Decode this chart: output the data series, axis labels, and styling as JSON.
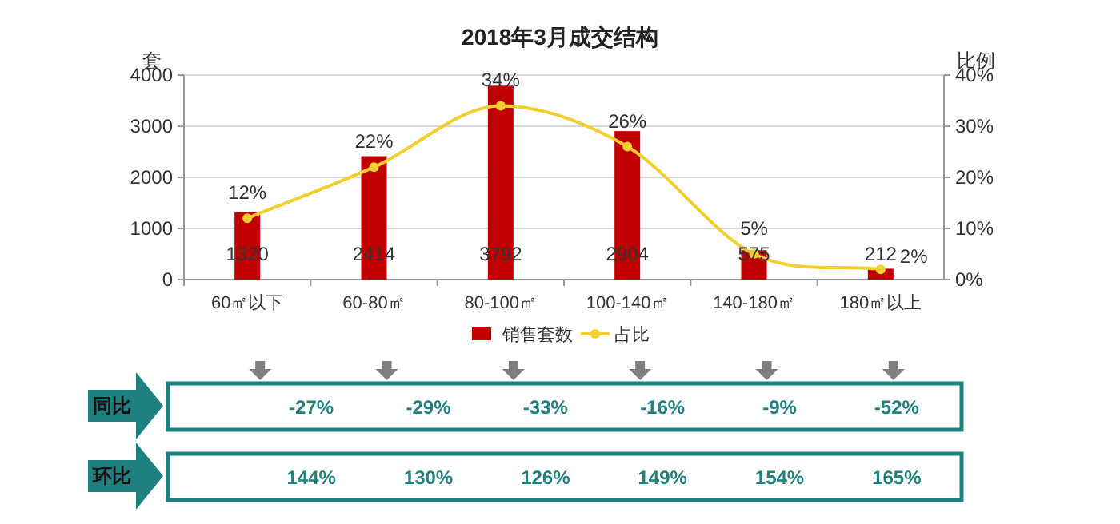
{
  "chart_data": [
    {
      "type": "bar",
      "title": "2018年3月成交结构",
      "ylabel": "套",
      "y2label": "比例",
      "categories": [
        "60㎡以下",
        "60-80㎡",
        "80-100㎡",
        "100-140㎡",
        "140-180㎡",
        "180㎡以上"
      ],
      "series": [
        {
          "name": "销售套数",
          "type": "bar",
          "color": "#c00000",
          "values": [
            1320,
            2414,
            3792,
            2904,
            575,
            212
          ],
          "value_labels": [
            "1320",
            "2414",
            "3792",
            "2904",
            "575",
            "212"
          ]
        },
        {
          "name": "占比",
          "type": "line",
          "axis": "y2",
          "color": "#f2cf2e",
          "marker": "circle",
          "values": [
            12,
            22,
            34,
            26,
            5,
            2
          ],
          "value_labels": [
            "12%",
            "22%",
            "34%",
            "26%",
            "5%",
            "2%"
          ]
        }
      ],
      "ylim": [
        0,
        4000
      ],
      "yticks": [
        0,
        1000,
        2000,
        3000,
        4000
      ],
      "y2lim": [
        0,
        40
      ],
      "y2ticks": [
        {
          "value": 0,
          "label": "0%"
        },
        {
          "value": 10,
          "label": "10%"
        },
        {
          "value": 20,
          "label": "20%"
        },
        {
          "value": 30,
          "label": "30%"
        },
        {
          "value": 40,
          "label": "40%"
        }
      ],
      "grid": "y",
      "legend": "bottom"
    },
    {
      "type": "other",
      "annotations": [
        "同比",
        "-27%",
        "-29%",
        "-33%",
        "-16%",
        "-9%",
        "-52%",
        "环比",
        "144%",
        "130%",
        "126%",
        "149%",
        "154%",
        "165%"
      ]
    }
  ]
}
